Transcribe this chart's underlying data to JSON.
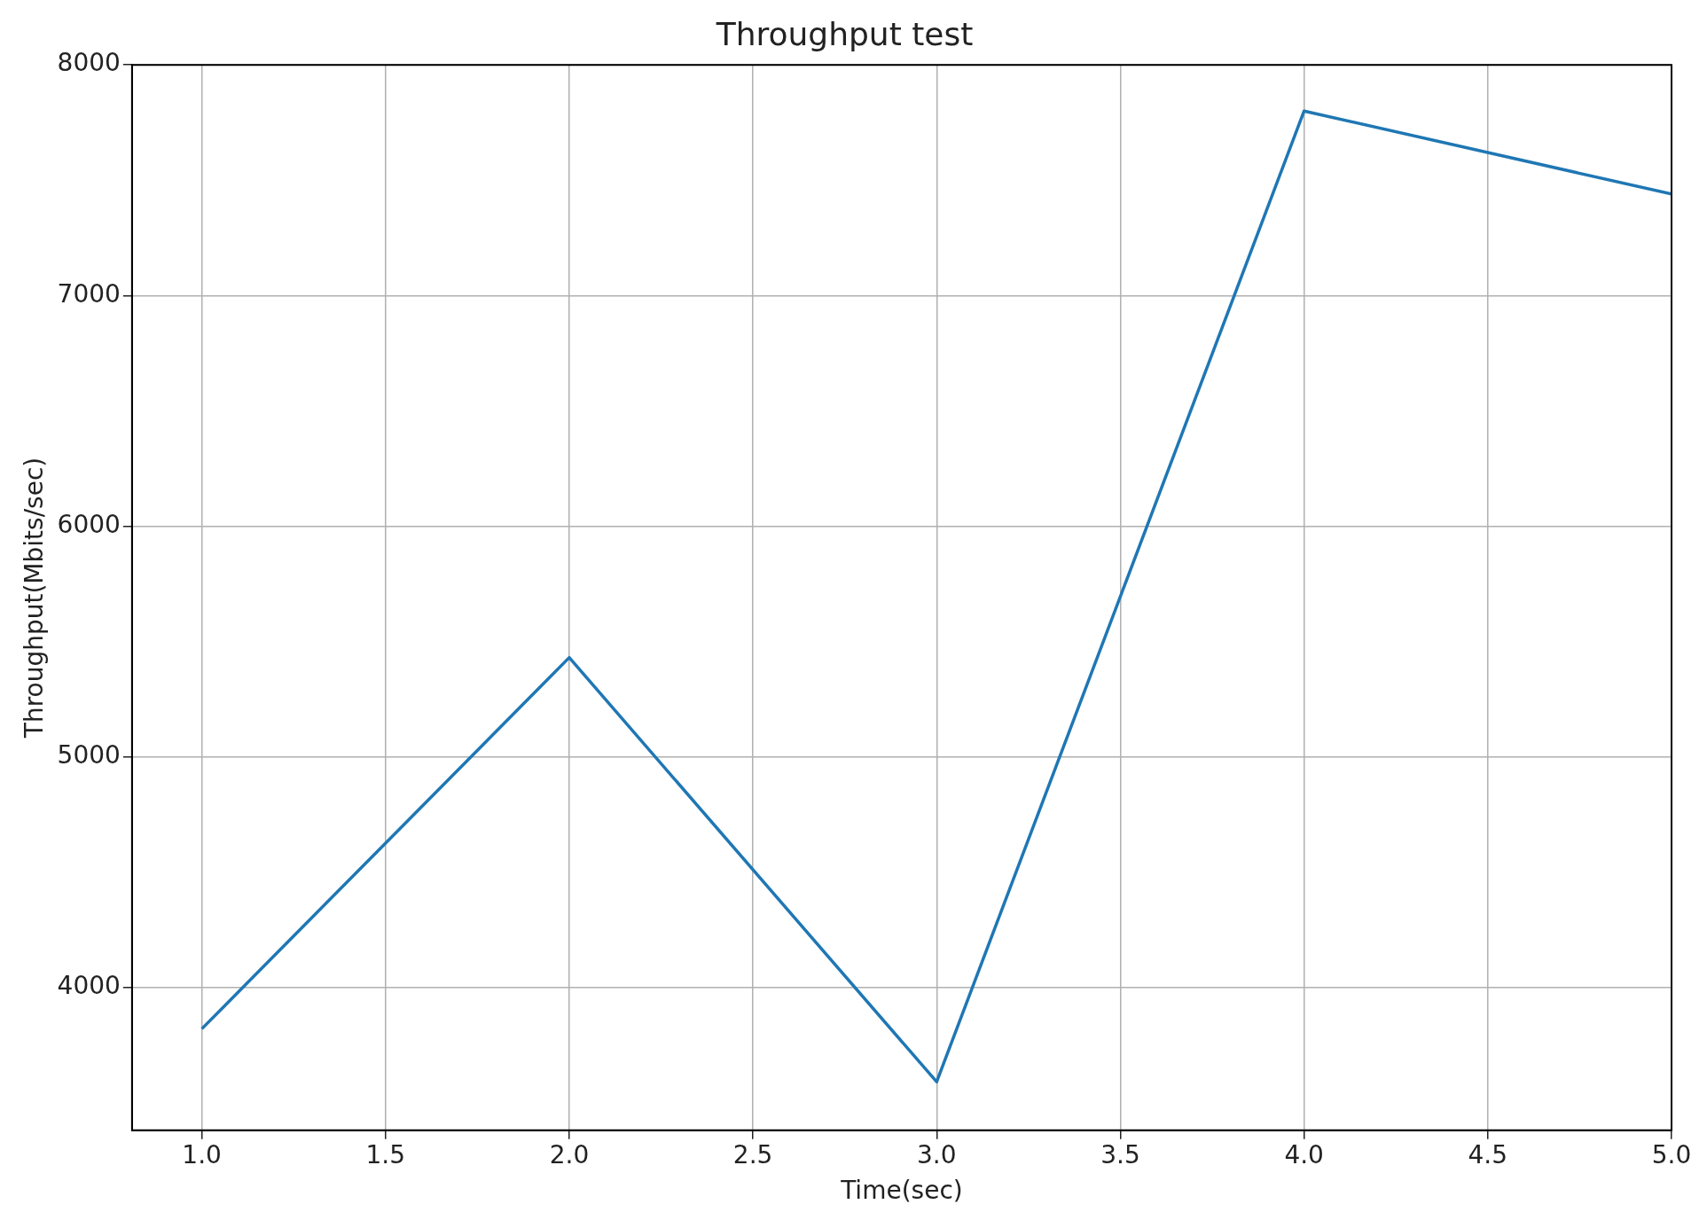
{
  "chart_data": {
    "type": "line",
    "title": "Throughput test",
    "xlabel": "Time(sec)",
    "ylabel": "Throughput(Mbits/sec)",
    "x": [
      1,
      2,
      3,
      4,
      5
    ],
    "series": [
      {
        "color": "#1f77b4",
        "values": [
          3820,
          5430,
          3590,
          7800,
          7440
        ]
      }
    ],
    "xlim": [
      0.81,
      5.0
    ],
    "ylim": [
      3380,
      8000
    ],
    "xticks": [
      {
        "value": 1,
        "label": "1.0"
      },
      {
        "value": 1.5,
        "label": "1.5"
      },
      {
        "value": 2,
        "label": "2.0"
      },
      {
        "value": 2.5,
        "label": "2.5"
      },
      {
        "value": 3,
        "label": "3.0"
      },
      {
        "value": 3.5,
        "label": "3.5"
      },
      {
        "value": 4,
        "label": "4.0"
      },
      {
        "value": 4.5,
        "label": "4.5"
      },
      {
        "value": 5,
        "label": "5.0"
      }
    ],
    "yticks": [
      4000,
      5000,
      6000,
      7000,
      8000
    ],
    "grid": true,
    "legend": false,
    "marker": "none",
    "line_style": "solid"
  }
}
